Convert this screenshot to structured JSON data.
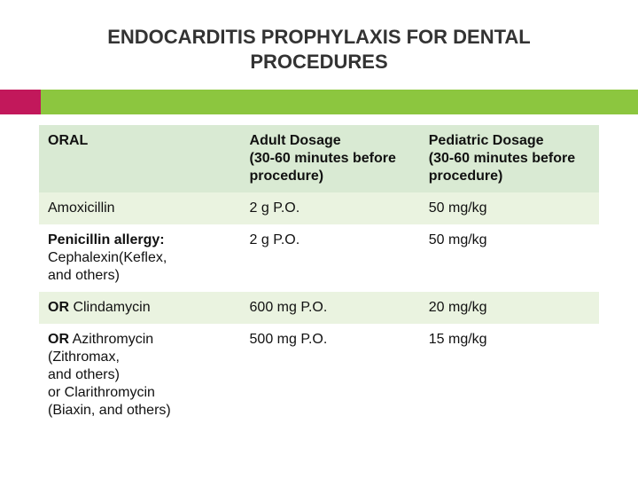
{
  "title": "ENDOCARDITIS PROPHYLAXIS FOR DENTAL PROCEDURES",
  "colors": {
    "accent_bar": "#8cc63f",
    "accent_notch": "#c2185b",
    "header_row_bg": "#d9ead3",
    "row_odd_bg": "#eaf3e0",
    "row_even_bg": "#ffffff",
    "text": "#111111"
  },
  "table": {
    "type": "table",
    "column_widths_pct": [
      36,
      32,
      32
    ],
    "header_fontsize": 16,
    "body_fontsize": 16,
    "columns": [
      "ORAL",
      "Adult Dosage\n (30-60 minutes before procedure)",
      "Pediatric Dosage\n(30-60 minutes before procedure)"
    ],
    "rows": [
      {
        "drug_bold": "",
        "drug_rest": "Amoxicillin",
        "adult": "2 g  P.O.",
        "pediatric": "50 mg/kg"
      },
      {
        "drug_bold": "Penicillin allergy:",
        "drug_rest": "\nCephalexin(Keflex,\nand others)",
        "adult": "2 g  P.O.",
        "pediatric": "50 mg/kg"
      },
      {
        "drug_bold": "OR",
        "drug_rest": "    Clindamycin",
        "adult": "600 mg  P.O.",
        "pediatric": "20 mg/kg"
      },
      {
        "drug_bold": "OR",
        "drug_rest": "    Azithromycin\n(Zithromax,\nand others)\nor Clarithromycin\n(Biaxin, and others)",
        "adult": "500 mg  P.O.",
        "pediatric": "15 mg/kg"
      }
    ]
  }
}
